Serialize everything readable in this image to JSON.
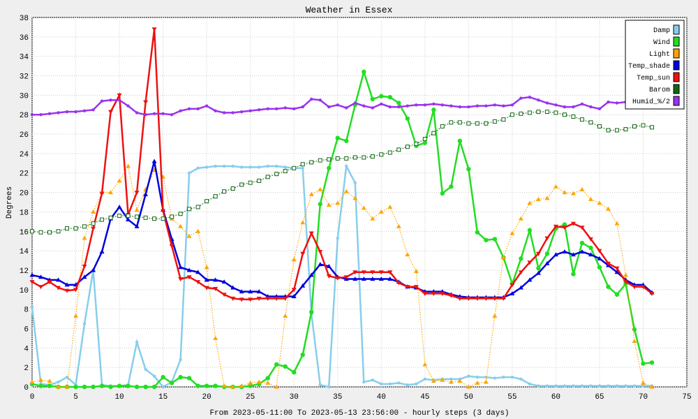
{
  "chart_data": {
    "type": "line",
    "title": "Weather in Essex",
    "ylabel": "Degrees",
    "xlabel": "From 2023-05-11:00 To 2023-05-13 23:56:00 - hourly steps (3 days)",
    "xlim": [
      0,
      75
    ],
    "xticks": [
      0,
      5,
      10,
      15,
      20,
      25,
      30,
      35,
      40,
      45,
      50,
      55,
      60,
      65,
      70,
      75
    ],
    "ylim": [
      0,
      38
    ],
    "yticks": [
      0,
      2,
      4,
      6,
      8,
      10,
      12,
      14,
      16,
      18,
      20,
      22,
      24,
      26,
      28,
      30,
      32,
      34,
      36,
      38
    ],
    "grid": true,
    "legend": "upper right",
    "x": [
      0,
      1,
      2,
      3,
      4,
      5,
      6,
      7,
      8,
      9,
      10,
      11,
      12,
      13,
      14,
      15,
      16,
      17,
      18,
      19,
      20,
      21,
      22,
      23,
      24,
      25,
      26,
      27,
      28,
      29,
      30,
      31,
      32,
      33,
      34,
      35,
      36,
      37,
      38,
      39,
      40,
      41,
      42,
      43,
      44,
      45,
      46,
      47,
      48,
      49,
      50,
      51,
      52,
      53,
      54,
      55,
      56,
      57,
      58,
      59,
      60,
      61,
      62,
      63,
      64,
      65,
      66,
      67,
      68,
      69,
      70,
      71
    ],
    "series": [
      {
        "name": "Damp",
        "color": "#87ceeb",
        "line_style": "solid",
        "values": [
          8.2,
          0.3,
          0.2,
          0.5,
          1.0,
          0.2,
          6.5,
          12,
          0.2,
          0.1,
          0.1,
          0.2,
          4.6,
          1.8,
          1.1,
          0,
          0.5,
          2.8,
          22,
          22.5,
          22.6,
          22.7,
          22.7,
          22.7,
          22.6,
          22.6,
          22.6,
          22.7,
          22.7,
          22.6,
          22.5,
          22.5,
          7.5,
          0.2,
          0,
          15.3,
          22.7,
          21,
          0.5,
          0.7,
          0.3,
          0.3,
          0.4,
          0.2,
          0.3,
          0.8,
          0.7,
          0.8,
          0.8,
          0.8,
          1.1,
          1.0,
          1.0,
          0.9,
          1.0,
          1.0,
          0.8,
          0.3,
          0.1,
          0.1,
          0.1,
          0.1,
          0.1,
          0.1,
          0.1,
          0.1,
          0.1,
          0.1,
          0.1,
          0.1,
          0.1,
          0.1
        ]
      },
      {
        "name": "Wind",
        "color": "#22dd22",
        "line_style": "solid",
        "values": [
          0.3,
          0.1,
          0.1,
          0,
          0,
          0,
          0,
          0,
          0.1,
          0,
          0.1,
          0.1,
          0,
          0,
          0,
          1,
          0.4,
          1,
          0.9,
          0.1,
          0.1,
          0.1,
          0,
          0,
          0,
          0.1,
          0.3,
          0.9,
          2.3,
          2.1,
          1.5,
          3.3,
          7.7,
          18.8,
          22.5,
          25.6,
          25.3,
          29,
          32.4,
          29.6,
          29.9,
          29.8,
          29.2,
          27.6,
          24.8,
          25.1,
          28.5,
          19.9,
          20.6,
          25.3,
          22.4,
          15.9,
          15.1,
          15.2,
          13.3,
          10.6,
          13.2,
          16.1,
          12.2,
          13.7,
          16.3,
          16.7,
          11.6,
          14.8,
          14.3,
          12.3,
          10.3,
          9.5,
          10.6,
          5.9,
          2.4,
          2.5
        ]
      },
      {
        "name": "Light",
        "color": "#ffa500",
        "line_style": "dotted",
        "values": [
          0.5,
          0.7,
          0.6,
          0,
          0,
          7.3,
          15.3,
          18,
          20,
          20,
          21.2,
          22.7,
          18.2,
          20.3,
          22.3,
          21.6,
          17.3,
          16.5,
          15.5,
          16,
          12.3,
          5,
          0.1,
          0,
          0.1,
          0.4,
          0.5,
          0.4,
          0,
          7.3,
          13.1,
          16.9,
          19.8,
          20.3,
          18.7,
          18.9,
          20.1,
          19.4,
          18.4,
          17.3,
          18,
          18.5,
          16.5,
          13.6,
          11.9,
          2.3,
          0.6,
          0.7,
          0.5,
          0.6,
          0,
          0.4,
          0.5,
          7.3,
          13.3,
          15.8,
          17.3,
          18.9,
          19.3,
          19.4,
          20.6,
          20,
          19.9,
          20.3,
          19.3,
          18.9,
          18.3,
          16.8,
          11.5,
          4.7,
          0.4,
          0
        ]
      },
      {
        "name": "Temp_shade",
        "color": "#0000dd",
        "line_style": "solid",
        "values": [
          11.5,
          11.3,
          11.0,
          11,
          10.5,
          10.5,
          11.3,
          12,
          13.9,
          17.3,
          18.5,
          17.2,
          16.5,
          19.8,
          23.2,
          18.2,
          15.2,
          12.3,
          12,
          11.8,
          11,
          11,
          10.8,
          10.2,
          9.8,
          9.8,
          9.8,
          9.3,
          9.3,
          9.3,
          9.3,
          10.4,
          11.5,
          12.6,
          12.4,
          11.3,
          11.1,
          11.1,
          11.1,
          11.1,
          11.1,
          11.1,
          10.8,
          10.3,
          10.2,
          9.8,
          9.8,
          9.8,
          9.5,
          9.3,
          9.2,
          9.2,
          9.2,
          9.2,
          9.2,
          9.6,
          10.2,
          11,
          11.7,
          12.7,
          13.6,
          13.9,
          13.6,
          13.9,
          13.6,
          13.2,
          12.5,
          11.8,
          11,
          10.5,
          10.5,
          9.7
        ]
      },
      {
        "name": "Temp_sun",
        "color": "#ee1111",
        "line_style": "solid",
        "values": [
          10.8,
          10.3,
          10.8,
          10.2,
          9.9,
          10,
          12.4,
          16.3,
          19.9,
          28.3,
          30,
          17.7,
          20,
          29.3,
          36.8,
          18.1,
          14.5,
          11.1,
          11.3,
          10.8,
          10.2,
          10.1,
          9.5,
          9.1,
          9,
          9,
          9.1,
          9.1,
          9.1,
          9.1,
          10,
          13.7,
          15.8,
          13.9,
          11.4,
          11.2,
          11.3,
          11.8,
          11.8,
          11.8,
          11.8,
          11.8,
          10.7,
          10.3,
          10.3,
          9.6,
          9.6,
          9.6,
          9.4,
          9.1,
          9.1,
          9.1,
          9.1,
          9.1,
          9.1,
          10.5,
          11.8,
          12.8,
          13.7,
          15.3,
          16.5,
          16.4,
          16.8,
          16.4,
          15.2,
          14,
          12.7,
          12.2,
          10.8,
          10.3,
          10.3,
          9.6
        ]
      },
      {
        "name": "Barom",
        "color": "#116611",
        "line_style": "dotted",
        "values": [
          16,
          15.9,
          15.9,
          16,
          16.3,
          16.3,
          16.5,
          16.8,
          17.2,
          17.4,
          17.6,
          17.6,
          17.5,
          17.4,
          17.3,
          17.3,
          17.5,
          17.8,
          18.3,
          18.5,
          19.1,
          19.6,
          20.1,
          20.4,
          20.8,
          21,
          21.2,
          21.6,
          21.9,
          22.2,
          22.5,
          22.9,
          23.1,
          23.3,
          23.4,
          23.5,
          23.5,
          23.6,
          23.6,
          23.7,
          23.9,
          24.1,
          24.4,
          24.7,
          25,
          25.5,
          26.1,
          26.8,
          27.2,
          27.2,
          27.1,
          27.1,
          27.1,
          27.3,
          27.5,
          28,
          28.1,
          28.2,
          28.3,
          28.3,
          28.2,
          28,
          27.8,
          27.5,
          27.2,
          26.8,
          26.4,
          26.4,
          26.5,
          26.8,
          26.9,
          26.7
        ]
      },
      {
        "name": "Humid_%/2",
        "color": "#9933ee",
        "line_style": "solid",
        "values": [
          28,
          28,
          28.1,
          28.2,
          28.3,
          28.3,
          28.4,
          28.5,
          29.4,
          29.5,
          29.5,
          28.9,
          28.2,
          28,
          28.1,
          28.1,
          28,
          28.4,
          28.6,
          28.6,
          28.9,
          28.4,
          28.2,
          28.2,
          28.3,
          28.4,
          28.5,
          28.6,
          28.6,
          28.7,
          28.6,
          28.8,
          29.6,
          29.5,
          28.8,
          29,
          28.7,
          29.2,
          28.9,
          28.7,
          29.1,
          28.8,
          28.8,
          28.9,
          29,
          29,
          29.1,
          29,
          28.9,
          28.8,
          28.8,
          28.9,
          28.9,
          29,
          28.9,
          29,
          29.7,
          29.8,
          29.5,
          29.2,
          29,
          28.8,
          28.8,
          29.1,
          28.8,
          28.6,
          29.3,
          29.2,
          29.3,
          29.3,
          29.3,
          29.2
        ]
      }
    ]
  }
}
